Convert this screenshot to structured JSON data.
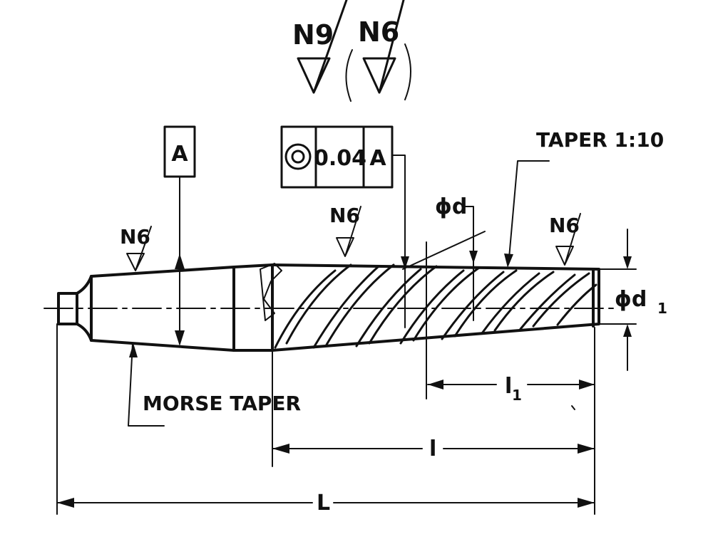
{
  "surface_finish": {
    "overall_main": "N9",
    "overall_secondary": "N6",
    "shank": "N6",
    "flutes": "N6",
    "tip": "N6"
  },
  "datum": {
    "label": "A"
  },
  "feature_control_frame": {
    "symbol": "concentricity",
    "tolerance": "0.04",
    "datum_ref": "A"
  },
  "annotations": {
    "taper": "TAPER 1:10",
    "shank_type": "MORSE TAPER",
    "diameter_d": "ϕd",
    "diameter_d1": "ϕd",
    "diameter_d1_sub": "1"
  },
  "dimensions": {
    "flute_length": "l",
    "taper_length": "l",
    "taper_length_sub": "1",
    "overall_length": "L"
  }
}
